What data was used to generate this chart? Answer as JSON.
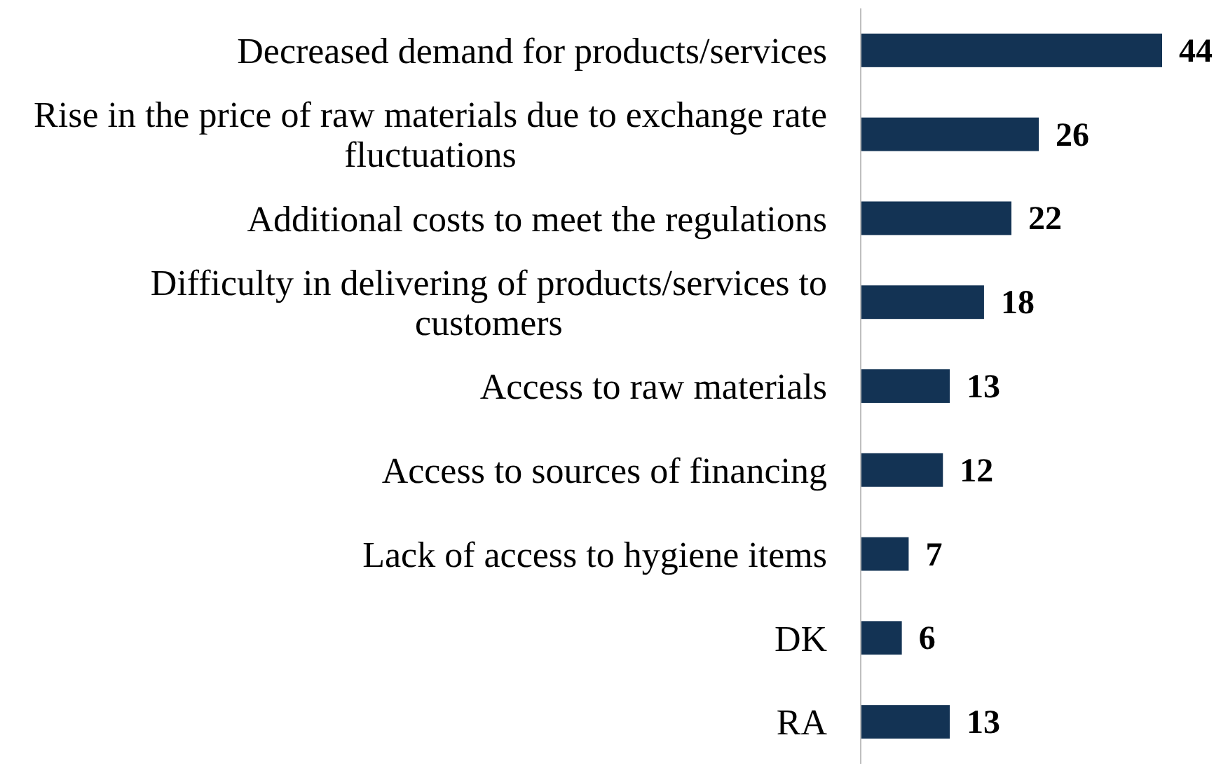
{
  "chart_data": {
    "type": "bar",
    "orientation": "horizontal",
    "categories": [
      "Decreased demand for products/services",
      "Rise in the price of raw materials due to exchange rate fluctuations",
      "Additional costs to meet the regulations",
      "Difficulty in delivering of products/services to customers",
      "Access to raw materials",
      "Access to sources of financing",
      "Lack of access to hygiene items",
      "DK",
      "RA"
    ],
    "values": [
      44,
      26,
      22,
      18,
      13,
      12,
      7,
      6,
      13
    ],
    "color": "#133354",
    "data_labels": true,
    "tick_labels": "y"
  }
}
